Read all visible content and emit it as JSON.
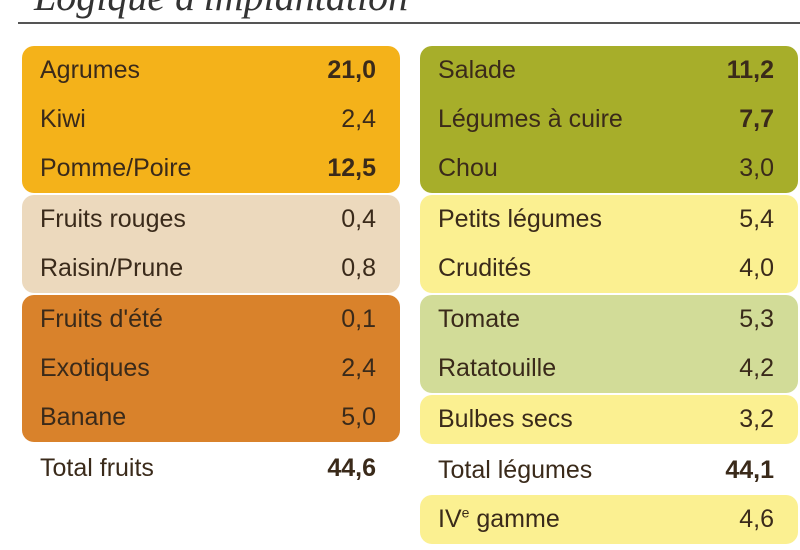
{
  "title": "Logique d'implantation",
  "colors": {
    "orange": "#f4b21a",
    "beige": "#ecd9bd",
    "brown_orange": "#d9822b",
    "olive": "#a7ae2a",
    "yellow": "#fbf091",
    "light_green": "#d2dc98"
  },
  "fruits": {
    "groups": [
      {
        "color": "#f4b21a",
        "rows": [
          {
            "label": "Agrumes",
            "value": "21,0",
            "bold": true
          },
          {
            "label": "Kiwi",
            "value": "2,4",
            "bold": false
          },
          {
            "label": "Pomme/Poire",
            "value": "12,5",
            "bold": true
          }
        ]
      },
      {
        "color": "#ecd9bd",
        "rows": [
          {
            "label": "Fruits rouges",
            "value": "0,4",
            "bold": false
          },
          {
            "label": "Raisin/Prune",
            "value": "0,8",
            "bold": false
          }
        ]
      },
      {
        "color": "#d9822b",
        "rows": [
          {
            "label": "Fruits d'été",
            "value": "0,1",
            "bold": false
          },
          {
            "label": "Exotiques",
            "value": "2,4",
            "bold": false
          },
          {
            "label": "Banane",
            "value": "5,0",
            "bold": false
          }
        ]
      }
    ],
    "total_label": "Total fruits",
    "total_value": "44,6"
  },
  "legumes": {
    "groups": [
      {
        "color": "#a7ae2a",
        "rows": [
          {
            "label": "Salade",
            "value": "11,2",
            "bold": true
          },
          {
            "label": "Légumes à cuire",
            "value": "7,7",
            "bold": true
          },
          {
            "label": "Chou",
            "value": "3,0",
            "bold": false
          }
        ]
      },
      {
        "color": "#fbf091",
        "rows": [
          {
            "label": "Petits légumes",
            "value": "5,4",
            "bold": false
          },
          {
            "label": "Crudités",
            "value": "4,0",
            "bold": false
          }
        ]
      },
      {
        "color": "#d2dc98",
        "rows": [
          {
            "label": "Tomate",
            "value": "5,3",
            "bold": false
          },
          {
            "label": "Ratatouille",
            "value": "4,2",
            "bold": false
          }
        ]
      },
      {
        "color": "#fbf091",
        "rows": [
          {
            "label": "Bulbes secs",
            "value": "3,2",
            "bold": false
          }
        ]
      }
    ],
    "total_label": "Total légumes",
    "total_value": "44,1",
    "extra": {
      "label_main": "IV",
      "label_sup": "e",
      "label_rest": " gamme",
      "value": "4,6",
      "color": "#fbf091"
    }
  }
}
